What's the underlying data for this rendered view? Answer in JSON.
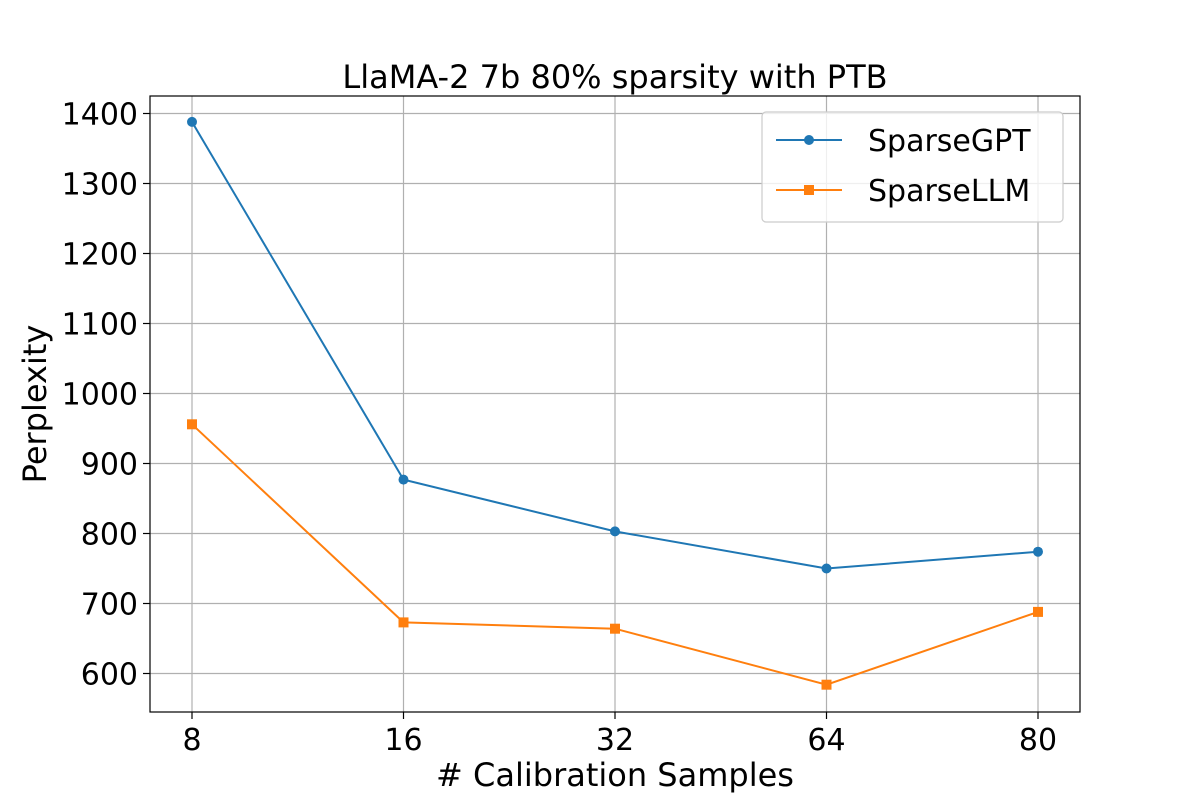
{
  "chart_data": {
    "type": "line",
    "title": "LlaMA-2 7b 80% sparsity with PTB",
    "xlabel": "# Calibration Samples",
    "ylabel": "Perplexity",
    "categories": [
      "8",
      "16",
      "32",
      "64",
      "80"
    ],
    "ylim": [
      545,
      1425
    ],
    "yticks": [
      600,
      700,
      800,
      900,
      1000,
      1100,
      1200,
      1300,
      1400
    ],
    "grid": true,
    "legend_position": "top-right",
    "series": [
      {
        "name": "SparseGPT",
        "marker": "circle",
        "color": "#1f77b4",
        "values": [
          1388,
          877,
          803,
          750,
          774
        ]
      },
      {
        "name": "SparseLLM",
        "marker": "square",
        "color": "#ff7f0e",
        "values": [
          956,
          673,
          664,
          584,
          688
        ]
      }
    ]
  }
}
